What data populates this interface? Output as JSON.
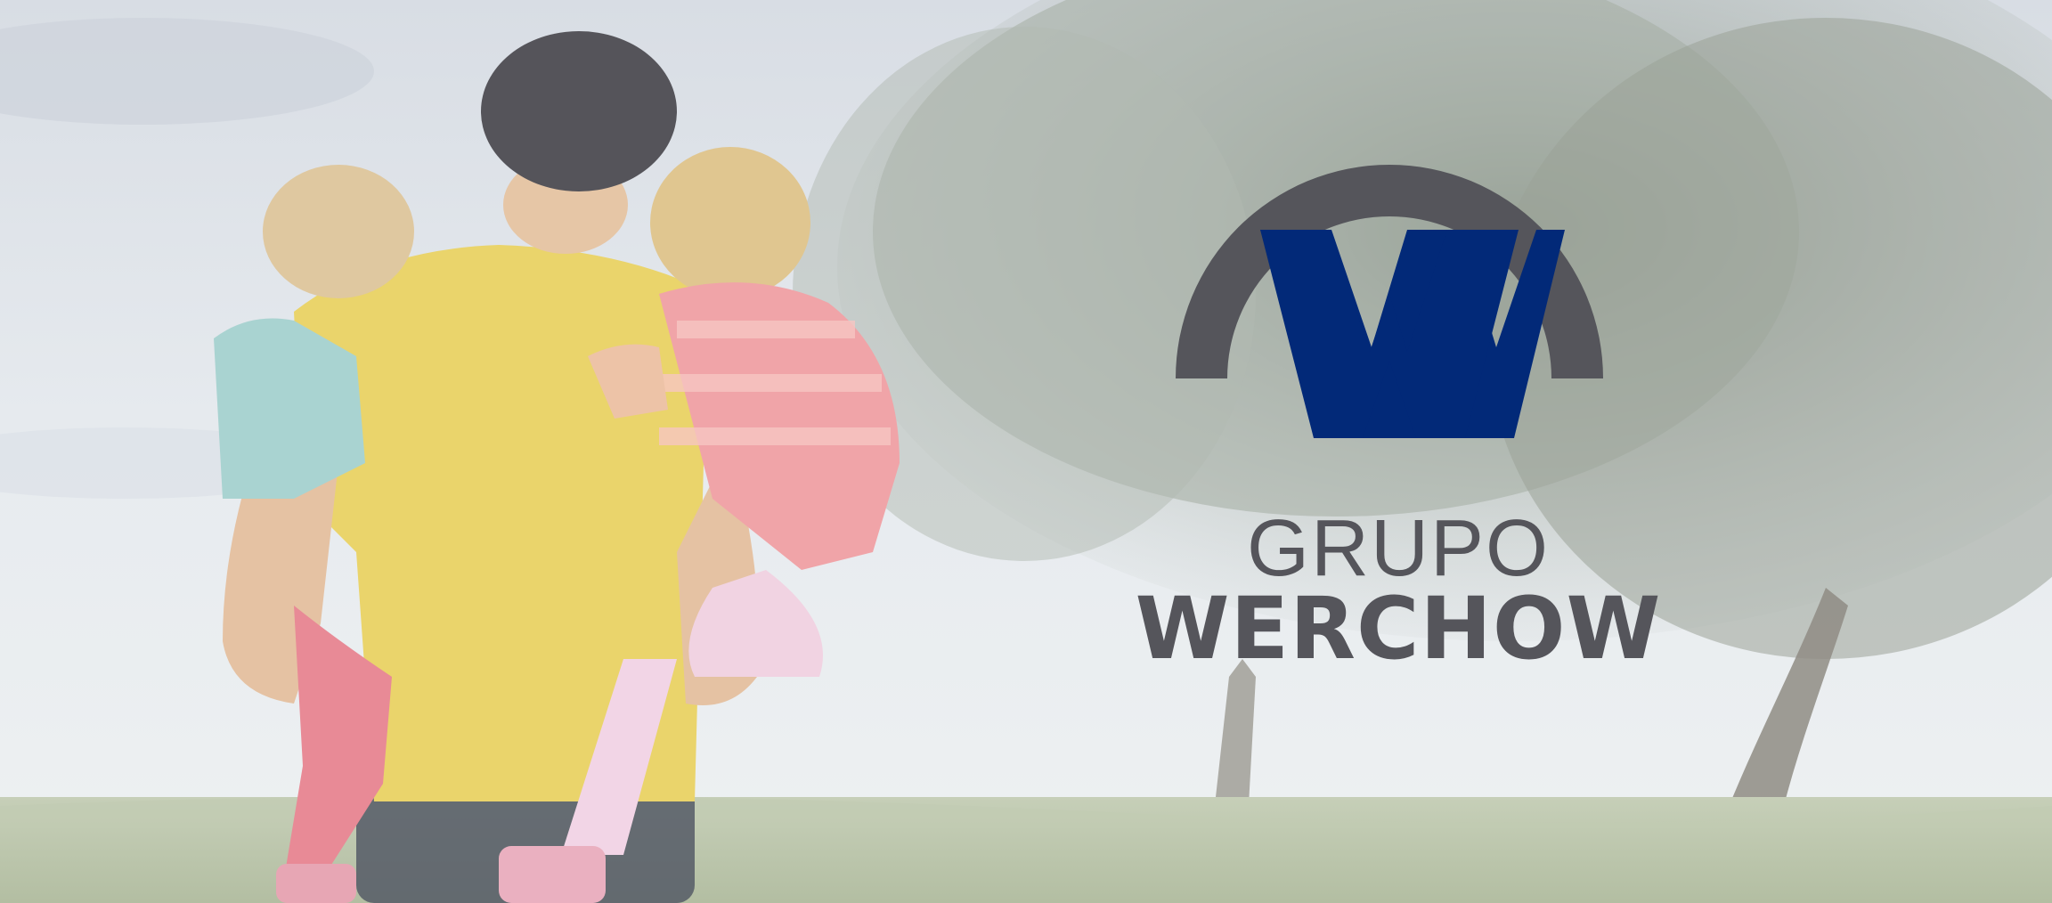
{
  "brand": {
    "line1": "GRUPO",
    "line2": "WERCHOW"
  },
  "colors": {
    "brand_blue": "#022978",
    "brand_gray": "#55555b",
    "sky": "#e6ebf0",
    "grass": "#bfc9b0",
    "tree": "#9fa89e",
    "shirt_yellow": "#ead46b"
  },
  "icons": [
    "werchow-w-logo-icon"
  ]
}
